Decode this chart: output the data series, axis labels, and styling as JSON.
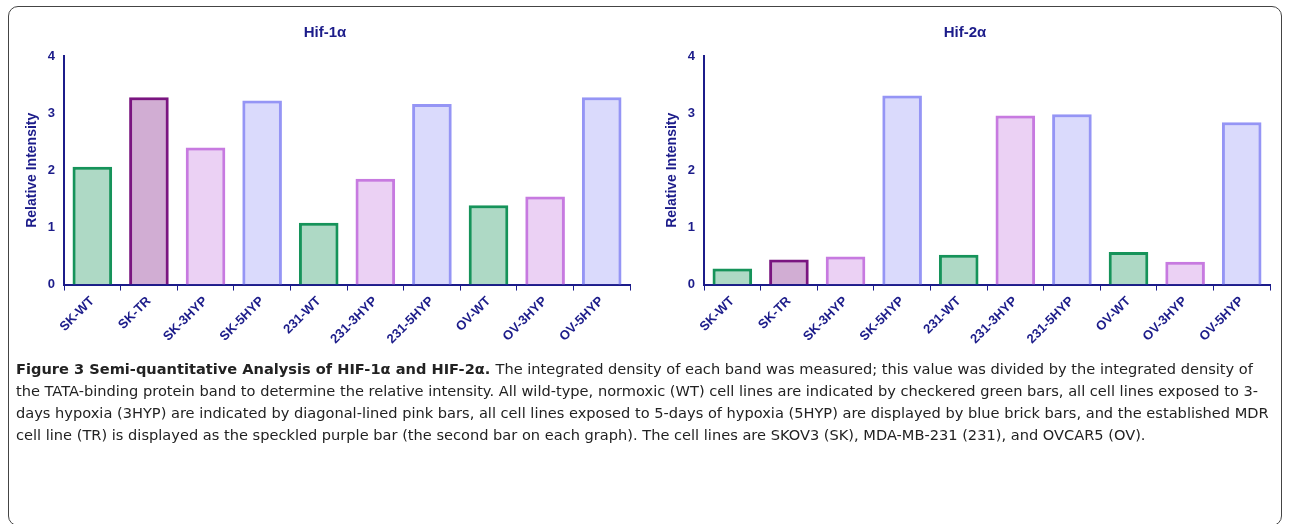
{
  "chart_data": [
    {
      "type": "bar",
      "title": "Hif-1α",
      "ylabel": "Relative Intensity",
      "categories": [
        "SK-WT",
        "SK-TR",
        "SK-3HYP",
        "SK-5HYP",
        "231-WT",
        "231-3HYP",
        "231-5HYP",
        "OV-WT",
        "OV-3HYP",
        "OV-5HYP"
      ],
      "values": [
        2.06,
        3.28,
        2.4,
        3.22,
        1.08,
        1.85,
        3.16,
        1.39,
        1.54,
        3.28
      ],
      "colors": [
        "#16935a",
        "#7a1580",
        "#c77ae0",
        "#9595f5",
        "#16935a",
        "#c77ae0",
        "#9595f5",
        "#16935a",
        "#c77ae0",
        "#9595f5"
      ],
      "ylim": [
        0,
        4
      ],
      "yticks": [
        0,
        1,
        2,
        3,
        4
      ],
      "grid": false,
      "legend": false,
      "annotations": [
        "Figure 3 Semi-quantitative Analysis of HIF-1α and HIF-2α.",
        "The integrated density of each band was measured; this value was divided by the integrated density of the TATA-binding protein band to determine the relative intensity. All wild-type, normoxic (WT) cell lines are indicated by checkered green bars, all cell lines exposed to 3-days hypoxia (3HYP) are indicated by diagonal-lined pink bars, all cell lines exposed to 5-days of hypoxia (5HYP) are displayed by blue brick bars, and the established MDR cell line (TR) is displayed as the speckled purple bar (the second bar on each graph). The cell lines are SKOV3 (SK), MDA-MB-231 (231), and OVCAR5 (OV)."
      ]
    },
    {
      "type": "bar",
      "title": "Hif-2α",
      "ylabel": "Relative Intensity",
      "categories": [
        "SK-WT",
        "SK-TR",
        "SK-3HYP",
        "SK-5HYP",
        "231-WT",
        "231-3HYP",
        "231-5HYP",
        "OV-WT",
        "OV-3HYP",
        "OV-5HYP"
      ],
      "values": [
        0.28,
        0.44,
        0.49,
        3.31,
        0.52,
        2.96,
        2.98,
        0.57,
        0.4,
        2.84
      ],
      "colors": [
        "#16935a",
        "#7a1580",
        "#c77ae0",
        "#9595f5",
        "#16935a",
        "#c77ae0",
        "#9595f5",
        "#16935a",
        "#c77ae0",
        "#9595f5"
      ],
      "ylim": [
        0,
        4
      ],
      "yticks": [
        0,
        1,
        2,
        3,
        4
      ],
      "grid": false,
      "legend": false
    }
  ]
}
